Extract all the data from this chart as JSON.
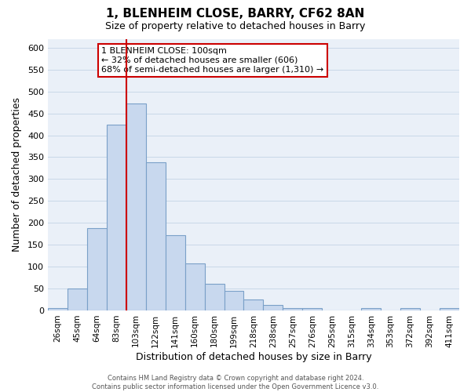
{
  "title": "1, BLENHEIM CLOSE, BARRY, CF62 8AN",
  "subtitle": "Size of property relative to detached houses in Barry",
  "xlabel": "Distribution of detached houses by size in Barry",
  "ylabel": "Number of detached properties",
  "bar_labels": [
    "26sqm",
    "45sqm",
    "64sqm",
    "83sqm",
    "103sqm",
    "122sqm",
    "141sqm",
    "160sqm",
    "180sqm",
    "199sqm",
    "218sqm",
    "238sqm",
    "257sqm",
    "276sqm",
    "295sqm",
    "315sqm",
    "334sqm",
    "353sqm",
    "372sqm",
    "392sqm",
    "411sqm"
  ],
  "bar_values": [
    5,
    50,
    188,
    425,
    472,
    338,
    172,
    107,
    60,
    44,
    25,
    11,
    5,
    5,
    0,
    0,
    5,
    0,
    5,
    0,
    5
  ],
  "bar_color": "#c8d8ee",
  "bar_edge_color": "#7aa0c8",
  "vline_x_index": 4,
  "vline_color": "#cc0000",
  "ylim": [
    0,
    620
  ],
  "yticks": [
    0,
    50,
    100,
    150,
    200,
    250,
    300,
    350,
    400,
    450,
    500,
    550,
    600
  ],
  "annotation_title": "1 BLENHEIM CLOSE: 100sqm",
  "annotation_line1": "← 32% of detached houses are smaller (606)",
  "annotation_line2": "68% of semi-detached houses are larger (1,310) →",
  "footer_line1": "Contains HM Land Registry data © Crown copyright and database right 2024.",
  "footer_line2": "Contains public sector information licensed under the Open Government Licence v3.0.",
  "grid_color": "#c8d8e8",
  "background_color": "#eaf0f8"
}
